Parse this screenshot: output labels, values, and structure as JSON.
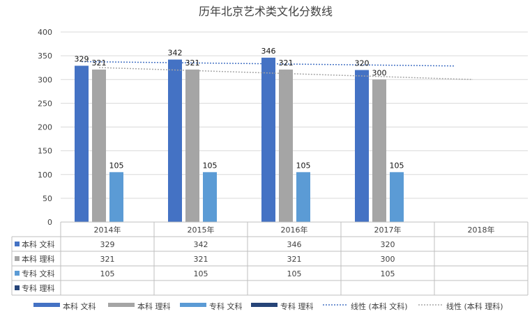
{
  "chart_data": {
    "type": "bar",
    "title": "历年北京艺术类文化分数线",
    "categories": [
      "2014年",
      "2015年",
      "2016年",
      "2017年",
      "2018年"
    ],
    "ylim": [
      0,
      400
    ],
    "yticks": [
      0,
      50,
      100,
      150,
      200,
      250,
      300,
      350,
      400
    ],
    "grid": true,
    "legend_position": "bottom",
    "series": [
      {
        "name": "本科 文科",
        "color": "#4472c4",
        "values": [
          329,
          342,
          346,
          320,
          null
        ],
        "labels": [
          "329",
          "342",
          "346",
          "320",
          ""
        ]
      },
      {
        "name": "本科 理科",
        "color": "#a5a5a5",
        "values": [
          321,
          321,
          321,
          300,
          null
        ],
        "labels": [
          "321",
          "321",
          "321",
          "300",
          ""
        ]
      },
      {
        "name": "专科 文科",
        "color": "#5b9bd5",
        "values": [
          105,
          105,
          105,
          105,
          null
        ],
        "labels": [
          "105",
          "105",
          "105",
          "105",
          ""
        ]
      },
      {
        "name": "专科 理科",
        "color": "#264478",
        "values": [
          null,
          null,
          null,
          null,
          null
        ],
        "labels": [
          "",
          "",
          "",
          "",
          ""
        ]
      }
    ],
    "trendlines": [
      {
        "name": "线性 (本科 文科)",
        "series": 0,
        "color": "#4472c4"
      },
      {
        "name": "线性 (本科 理科)",
        "series": 1,
        "color": "#a5a5a5"
      }
    ]
  }
}
